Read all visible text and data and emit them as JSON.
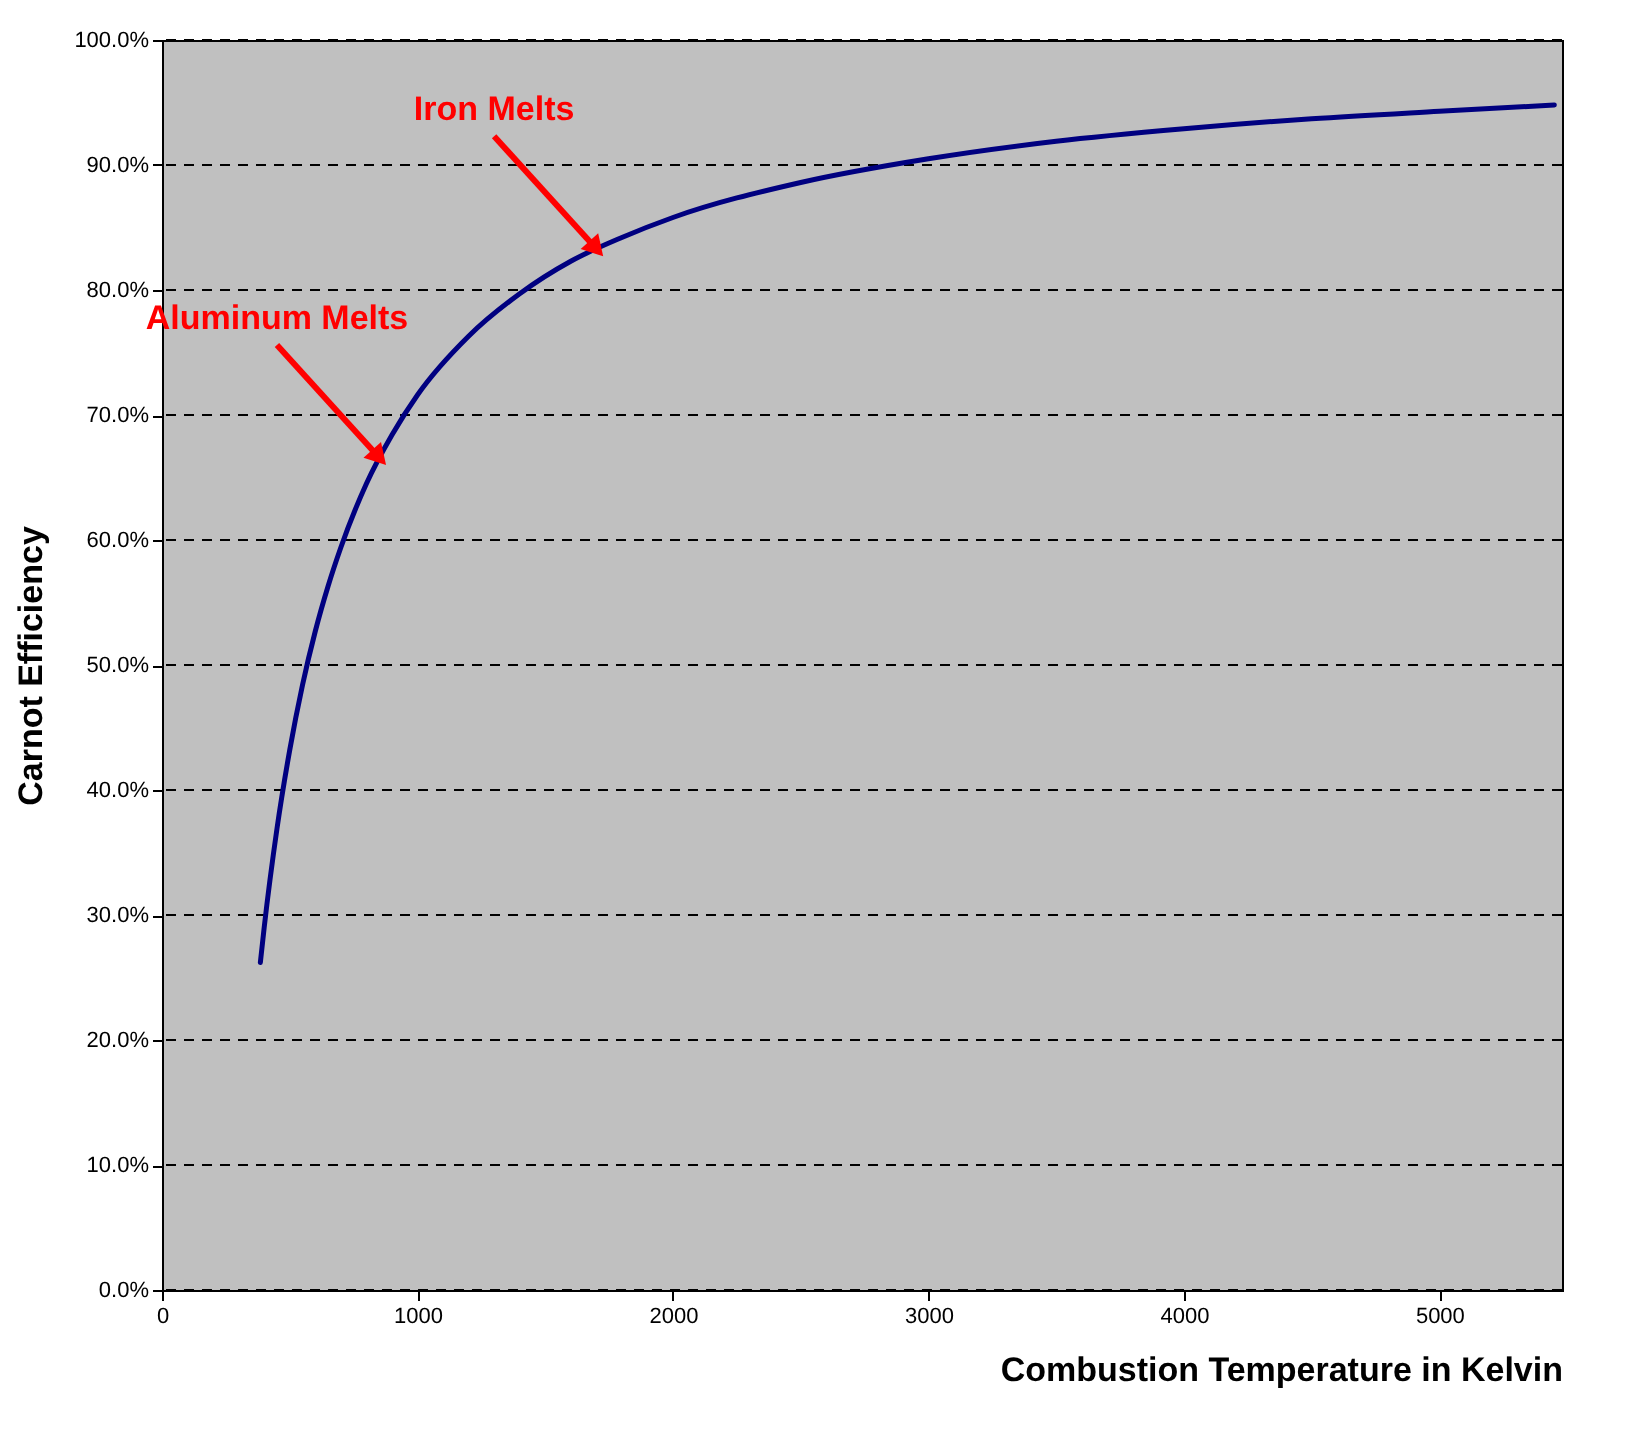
{
  "chart_data": {
    "type": "line",
    "xlabel": "Combustion Temperature in Kelvin",
    "ylabel": "Carnot Efficiency",
    "x": [
      385,
      400,
      450,
      500,
      550,
      600,
      650,
      700,
      800,
      900,
      1000,
      1200,
      1400,
      1600,
      1800,
      2000,
      2500,
      3000,
      3500,
      4000,
      4500,
      5000,
      5450
    ],
    "series": [
      {
        "color": "#000080",
        "values": [
          26.2,
          29,
          36.9,
          43.2,
          48.4,
          52.7,
          56.3,
          59.4,
          64.5,
          68.4,
          71.6,
          76.3,
          79.7,
          82.3,
          84.2,
          85.8,
          88.6,
          90.5,
          91.9,
          92.9,
          93.7,
          94.3,
          94.8
        ]
      }
    ],
    "xlim": [
      0,
      5480
    ],
    "xticks": [
      0,
      1000,
      2000,
      3000,
      4000,
      5000
    ],
    "ylim": [
      0,
      100
    ],
    "yticks": [
      {
        "value": 0,
        "label": "0.0%"
      },
      {
        "value": 10,
        "label": "10.0%"
      },
      {
        "value": 20,
        "label": "20.0%"
      },
      {
        "value": 30,
        "label": "30.0%"
      },
      {
        "value": 40,
        "label": "40.0%"
      },
      {
        "value": 50,
        "label": "50.0%"
      },
      {
        "value": 60,
        "label": "60.0%"
      },
      {
        "value": 70,
        "label": "70.0%"
      },
      {
        "value": 80,
        "label": "80.0%"
      },
      {
        "value": 90,
        "label": "90.0%"
      },
      {
        "value": 100,
        "label": "100.0%"
      }
    ],
    "grid": "y",
    "line_style": "solid",
    "marker": "none",
    "annotations": [
      {
        "text": "Iron Melts",
        "x": 1700,
        "y": 83.3
      },
      {
        "text": "Aluminum Melts",
        "x": 850,
        "y": 66.6
      }
    ]
  }
}
